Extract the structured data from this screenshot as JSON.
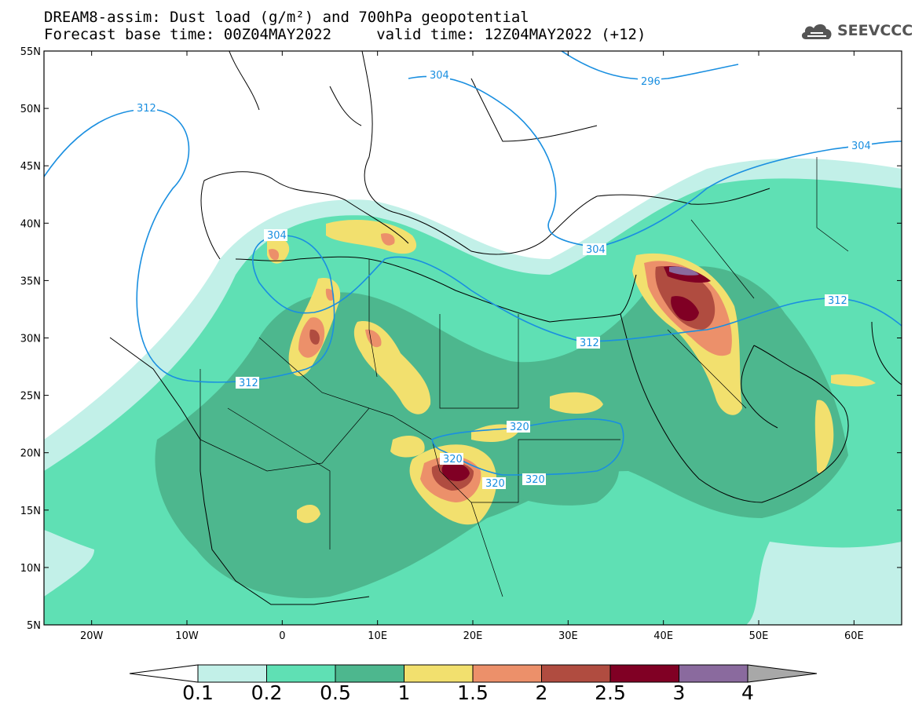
{
  "header": {
    "title_line1": "DREAM8-assim: Dust load (g/m²) and 700hPa geopotential",
    "title_line2": "Forecast base time: 00Z04MAY2022     valid time: 12Z04MAY2022 (+12)",
    "logo_text": "SEEVCCC",
    "logo_icon": "cloud-logo-icon"
  },
  "map": {
    "lon_range": [
      -25,
      65
    ],
    "lat_range": [
      5,
      55
    ],
    "lat_ticks": [
      "55N",
      "50N",
      "45N",
      "40N",
      "35N",
      "30N",
      "25N",
      "20N",
      "15N",
      "10N",
      "5N"
    ],
    "lon_ticks": [
      "20W",
      "10W",
      "0",
      "10E",
      "20E",
      "30E",
      "40E",
      "50E",
      "60E"
    ],
    "contour_labels": [
      "312",
      "304",
      "296",
      "304",
      "304",
      "312",
      "312",
      "312",
      "320",
      "320",
      "320",
      "320"
    ],
    "colors": {
      "c0": "#c2f0e8",
      "c1": "#5fe0b4",
      "c2": "#4db78e",
      "c3": "#f2e06e",
      "c4": "#ec906a",
      "c5": "#b04c40",
      "c6": "#800024",
      "c7": "#8a6a9e",
      "contour": "#1a8fe0"
    }
  },
  "colorbar": {
    "labels": [
      "0.1",
      "0.2",
      "0.5",
      "1",
      "1.5",
      "2",
      "2.5",
      "3",
      "4"
    ],
    "colors": [
      "#c2f0e8",
      "#5fe0b4",
      "#4db78e",
      "#f2e06e",
      "#ec906a",
      "#b04c40",
      "#800024",
      "#8a6a9e"
    ],
    "under_color": "#ffffff",
    "over_color": "#a8a8a8"
  }
}
